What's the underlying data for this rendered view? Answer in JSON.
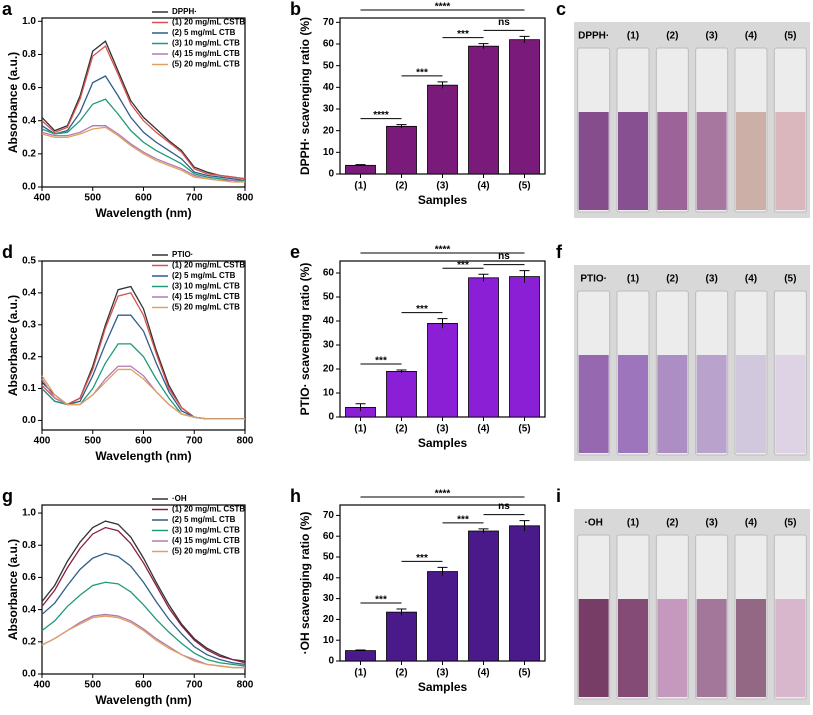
{
  "chart_data": [
    {
      "type": "line",
      "panel": "a",
      "x_label": "Wavelength (nm)",
      "y_label": "Absorbance (a.u.)",
      "x": [
        400,
        425,
        450,
        475,
        500,
        525,
        550,
        575,
        600,
        625,
        650,
        675,
        700,
        725,
        750,
        775,
        800
      ],
      "xlim": [
        400,
        800
      ],
      "xticks": [
        400,
        500,
        600,
        700,
        800
      ],
      "ylim": [
        0,
        1.02
      ],
      "yticks": [
        {
          "value": 0,
          "label": "0.0"
        },
        0.2,
        0.4,
        0.6,
        0.8,
        {
          "value": 1,
          "label": "1.0"
        }
      ],
      "series": [
        {
          "name": "DPPH·",
          "color": "#333333",
          "values": [
            0.42,
            0.34,
            0.37,
            0.55,
            0.82,
            0.88,
            0.7,
            0.52,
            0.42,
            0.35,
            0.28,
            0.22,
            0.12,
            0.09,
            0.07,
            0.06,
            0.05
          ]
        },
        {
          "name": "(1) 20 mg/mL  CSTB",
          "color": "#d9534f",
          "values": [
            0.4,
            0.33,
            0.36,
            0.53,
            0.79,
            0.85,
            0.68,
            0.5,
            0.4,
            0.33,
            0.27,
            0.21,
            0.11,
            0.08,
            0.07,
            0.06,
            0.05
          ]
        },
        {
          "name": "(2) 5 mg/mL   CTB",
          "color": "#2f5e8a",
          "values": [
            0.37,
            0.32,
            0.34,
            0.45,
            0.63,
            0.67,
            0.55,
            0.42,
            0.33,
            0.27,
            0.22,
            0.17,
            0.09,
            0.07,
            0.06,
            0.05,
            0.04
          ]
        },
        {
          "name": "(3) 10 mg/mL  CTB",
          "color": "#1f9a7a",
          "values": [
            0.35,
            0.32,
            0.33,
            0.4,
            0.5,
            0.53,
            0.44,
            0.34,
            0.27,
            0.22,
            0.18,
            0.14,
            0.08,
            0.06,
            0.05,
            0.04,
            0.04
          ]
        },
        {
          "name": "(4) 15 mg/mL  CTB",
          "color": "#b07ab0",
          "values": [
            0.33,
            0.31,
            0.31,
            0.33,
            0.37,
            0.37,
            0.32,
            0.26,
            0.21,
            0.17,
            0.14,
            0.11,
            0.07,
            0.05,
            0.04,
            0.04,
            0.03
          ]
        },
        {
          "name": "(5) 20 mg/mL  CTB",
          "color": "#e0a060",
          "values": [
            0.32,
            0.3,
            0.3,
            0.32,
            0.35,
            0.36,
            0.31,
            0.25,
            0.2,
            0.16,
            0.13,
            0.1,
            0.06,
            0.05,
            0.04,
            0.03,
            0.03
          ]
        }
      ]
    },
    {
      "type": "bar",
      "panel": "b",
      "x_label": "Samples",
      "y_label": "DPPH· scavenging ratio (%)",
      "color": "#7a1a7a",
      "categories": [
        "(1)",
        "(2)",
        "(3)",
        "(4)",
        "(5)"
      ],
      "values": [
        4,
        22,
        41,
        59,
        62
      ],
      "errors": [
        0.3,
        0.8,
        1.5,
        1.2,
        1.5
      ],
      "ylim": [
        0,
        72
      ],
      "yticks": [
        0,
        10,
        20,
        30,
        40,
        50,
        60,
        70
      ],
      "comparisons": [
        {
          "groups": [
            "(1)",
            "(2)"
          ],
          "label": "****"
        },
        {
          "groups": [
            "(2)",
            "(3)"
          ],
          "label": "***"
        },
        {
          "groups": [
            "(3)",
            "(4)"
          ],
          "label": "***"
        },
        {
          "groups": [
            "(4)",
            "(5)"
          ],
          "label": "ns"
        },
        {
          "groups": [
            "(1)",
            "(5)"
          ],
          "label": "****"
        }
      ]
    },
    {
      "type": "line",
      "panel": "d",
      "x_label": "Wavelength (nm)",
      "y_label": "Absorbance (a.u.)",
      "x": [
        400,
        425,
        450,
        475,
        500,
        525,
        550,
        575,
        600,
        625,
        650,
        675,
        700,
        725,
        750,
        775,
        800
      ],
      "xlim": [
        400,
        800
      ],
      "xticks": [
        400,
        500,
        600,
        700,
        800
      ],
      "ylim": [
        -0.03,
        0.5
      ],
      "yticks": [
        {
          "value": 0,
          "label": "0.0"
        },
        0.1,
        0.2,
        0.3,
        0.4,
        0.5
      ],
      "series": [
        {
          "name": "PTIO·",
          "color": "#333333",
          "values": [
            0.12,
            0.08,
            0.05,
            0.07,
            0.17,
            0.3,
            0.41,
            0.42,
            0.35,
            0.22,
            0.11,
            0.04,
            0.01,
            0.005,
            0.005,
            0.005,
            0.005
          ]
        },
        {
          "name": "(1) 20 mg/mL  CSTB",
          "color": "#d9534f",
          "values": [
            0.11,
            0.07,
            0.05,
            0.07,
            0.16,
            0.29,
            0.39,
            0.4,
            0.33,
            0.21,
            0.1,
            0.04,
            0.01,
            0.005,
            0.005,
            0.005,
            0.005
          ]
        },
        {
          "name": "(2) 5 mg/mL   CTB",
          "color": "#2f5e8a",
          "values": [
            0.1,
            0.06,
            0.05,
            0.06,
            0.14,
            0.24,
            0.33,
            0.33,
            0.28,
            0.18,
            0.09,
            0.03,
            0.01,
            0.005,
            0.005,
            0.005,
            0.005
          ]
        },
        {
          "name": "(3) 10 mg/mL  CTB",
          "color": "#1f9a7a",
          "values": [
            0.1,
            0.06,
            0.05,
            0.05,
            0.1,
            0.18,
            0.24,
            0.24,
            0.2,
            0.13,
            0.07,
            0.02,
            0.01,
            0.005,
            0.005,
            0.005,
            0.005
          ]
        },
        {
          "name": "(4) 15 mg/mL  CTB",
          "color": "#b07ab0",
          "values": [
            0.13,
            0.07,
            0.05,
            0.05,
            0.08,
            0.13,
            0.17,
            0.17,
            0.14,
            0.09,
            0.05,
            0.02,
            0.01,
            0.005,
            0.005,
            0.005,
            0.005
          ]
        },
        {
          "name": "(5) 20 mg/mL  CTB",
          "color": "#e0a060",
          "values": [
            0.14,
            0.08,
            0.05,
            0.05,
            0.08,
            0.12,
            0.16,
            0.16,
            0.13,
            0.09,
            0.05,
            0.02,
            0.01,
            0.005,
            0.005,
            0.005,
            0.005
          ]
        }
      ]
    },
    {
      "type": "bar",
      "panel": "e",
      "x_label": "Samples",
      "y_label": "PTIO· scavenging ratio (%)",
      "color": "#8a1fd6",
      "categories": [
        "(1)",
        "(2)",
        "(3)",
        "(4)",
        "(5)"
      ],
      "values": [
        4,
        19,
        39,
        58,
        58.5
      ],
      "errors": [
        1.5,
        0.6,
        2,
        1.5,
        2.5
      ],
      "ylim": [
        0,
        65
      ],
      "yticks": [
        0,
        10,
        20,
        30,
        40,
        50,
        60
      ],
      "comparisons": [
        {
          "groups": [
            "(1)",
            "(2)"
          ],
          "label": "***"
        },
        {
          "groups": [
            "(2)",
            "(3)"
          ],
          "label": "***"
        },
        {
          "groups": [
            "(3)",
            "(4)"
          ],
          "label": "***"
        },
        {
          "groups": [
            "(4)",
            "(5)"
          ],
          "label": "ns"
        },
        {
          "groups": [
            "(1)",
            "(5)"
          ],
          "label": "****"
        }
      ]
    },
    {
      "type": "line",
      "panel": "g",
      "x_label": "Wavelength (nm)",
      "y_label": "Absorbance (a.u.)",
      "x": [
        400,
        425,
        450,
        475,
        500,
        525,
        550,
        575,
        600,
        625,
        650,
        675,
        700,
        725,
        750,
        775,
        800
      ],
      "xlim": [
        400,
        800
      ],
      "xticks": [
        400,
        500,
        600,
        700,
        800
      ],
      "ylim": [
        0,
        1.05
      ],
      "yticks": [
        {
          "value": 0,
          "label": "0.0"
        },
        0.2,
        0.4,
        0.6,
        0.8,
        {
          "value": 1,
          "label": "1.0"
        }
      ],
      "series": [
        {
          "name": "·OH",
          "color": "#333333",
          "values": [
            0.45,
            0.55,
            0.7,
            0.82,
            0.91,
            0.95,
            0.93,
            0.85,
            0.72,
            0.57,
            0.43,
            0.31,
            0.22,
            0.16,
            0.12,
            0.09,
            0.08
          ]
        },
        {
          "name": "(1) 20 mg/mL  CSTB",
          "color": "#8a2040",
          "values": [
            0.42,
            0.52,
            0.66,
            0.78,
            0.87,
            0.91,
            0.89,
            0.81,
            0.69,
            0.55,
            0.41,
            0.3,
            0.21,
            0.15,
            0.11,
            0.09,
            0.07
          ]
        },
        {
          "name": "(2) 5 mg/mL   CTB",
          "color": "#2f5e8a",
          "values": [
            0.37,
            0.44,
            0.55,
            0.65,
            0.72,
            0.75,
            0.73,
            0.67,
            0.57,
            0.45,
            0.34,
            0.25,
            0.17,
            0.12,
            0.09,
            0.07,
            0.06
          ]
        },
        {
          "name": "(3) 10 mg/mL  CTB",
          "color": "#1f9a7a",
          "values": [
            0.27,
            0.33,
            0.42,
            0.49,
            0.55,
            0.57,
            0.56,
            0.51,
            0.43,
            0.34,
            0.26,
            0.19,
            0.13,
            0.09,
            0.07,
            0.06,
            0.05
          ]
        },
        {
          "name": "(4) 15 mg/mL  CTB",
          "color": "#b07ab0",
          "values": [
            0.18,
            0.22,
            0.27,
            0.32,
            0.36,
            0.37,
            0.36,
            0.33,
            0.28,
            0.22,
            0.17,
            0.12,
            0.09,
            0.06,
            0.05,
            0.04,
            0.04
          ]
        },
        {
          "name": "(5) 20 mg/mL  CTB",
          "color": "#e0a060",
          "values": [
            0.18,
            0.22,
            0.27,
            0.31,
            0.35,
            0.36,
            0.35,
            0.32,
            0.27,
            0.21,
            0.16,
            0.12,
            0.08,
            0.06,
            0.05,
            0.04,
            0.04
          ]
        }
      ]
    },
    {
      "type": "bar",
      "panel": "h",
      "x_label": "Samples",
      "y_label": "·OH scavenging ratio (%)",
      "color": "#4a1a8a",
      "categories": [
        "(1)",
        "(2)",
        "(3)",
        "(4)",
        "(5)"
      ],
      "values": [
        5,
        23.5,
        43,
        62.5,
        65
      ],
      "errors": [
        0.3,
        1.5,
        2,
        1,
        2.5
      ],
      "ylim": [
        0,
        75
      ],
      "yticks": [
        0,
        10,
        20,
        30,
        40,
        50,
        60,
        70
      ],
      "comparisons": [
        {
          "groups": [
            "(1)",
            "(2)"
          ],
          "label": "***"
        },
        {
          "groups": [
            "(2)",
            "(3)"
          ],
          "label": "***"
        },
        {
          "groups": [
            "(3)",
            "(4)"
          ],
          "label": "***"
        },
        {
          "groups": [
            "(4)",
            "(5)"
          ],
          "label": "ns"
        },
        {
          "groups": [
            "(1)",
            "(5)"
          ],
          "label": "****"
        }
      ]
    }
  ],
  "photos": [
    {
      "panel": "c",
      "labels": [
        "DPPH·",
        "(1)",
        "(2)",
        "(3)",
        "(4)",
        "(5)"
      ],
      "colors": [
        "#7a3c82",
        "#7c3f86",
        "#94548f",
        "#a06a98",
        "#c9a8a0",
        "#d8b0b8"
      ]
    },
    {
      "panel": "f",
      "labels": [
        "PTIO·",
        "(1)",
        "(2)",
        "(3)",
        "(4)",
        "(5)"
      ],
      "colors": [
        "#8c5aa8",
        "#9468b8",
        "#a684c0",
        "#b49ac8",
        "#cfc4dc",
        "#ddd0e4"
      ]
    },
    {
      "panel": "i",
      "labels": [
        "·OH",
        "(1)",
        "(2)",
        "(3)",
        "(4)",
        "(5)"
      ],
      "colors": [
        "#6a2a58",
        "#7a3a6a",
        "#c090b8",
        "#9a6a90",
        "#8a5a7a",
        "#d6b0c8"
      ]
    }
  ]
}
